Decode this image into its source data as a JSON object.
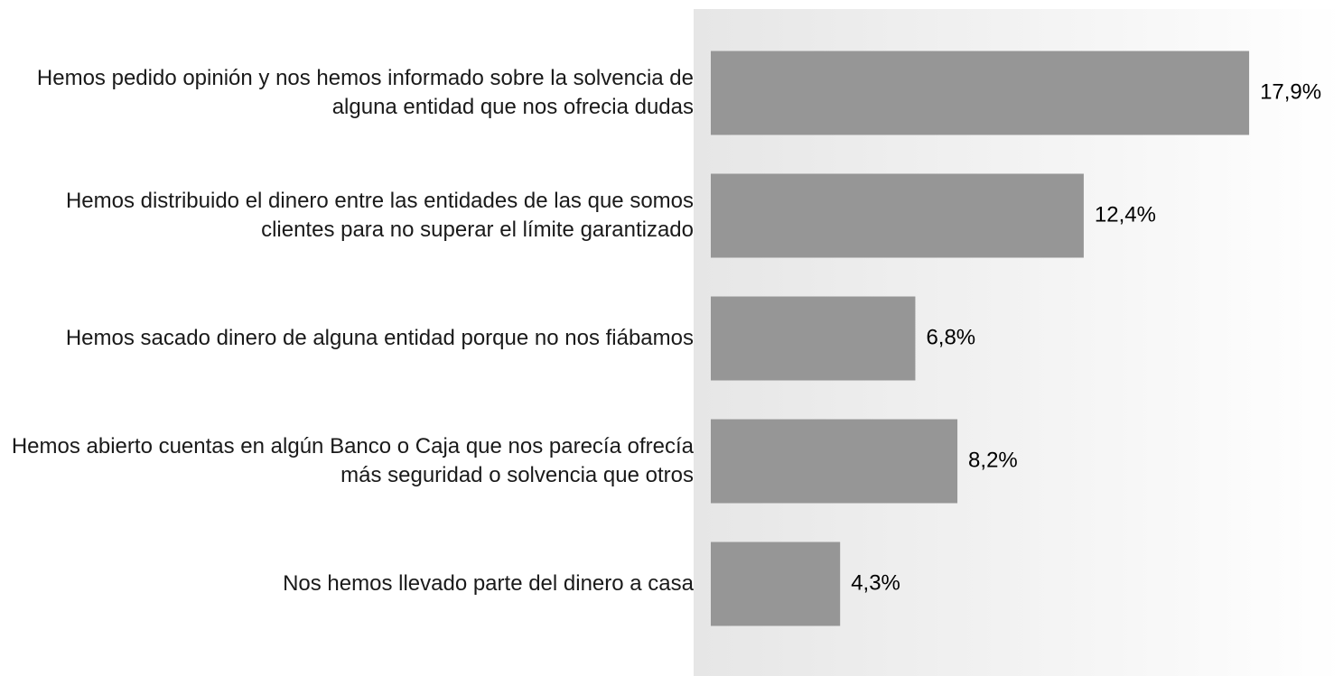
{
  "chart_data": {
    "type": "bar",
    "orientation": "horizontal",
    "categories": [
      "Hemos pedido opinión y nos hemos informado sobre la solvencia de alguna entidad que  nos ofrecia dudas",
      "Hemos distribuido el dinero entre las entidades de las que somos clientes para no superar el límite garantizado",
      "Hemos sacado dinero de alguna entidad porque no nos fiábamos",
      "Hemos abierto cuentas en algún Banco o Caja que nos parecía ofrecía más seguridad o solvencia que otros",
      "Nos hemos llevado parte del dinero a casa"
    ],
    "values": [
      17.9,
      12.4,
      6.8,
      8.2,
      4.3
    ],
    "value_labels": [
      "17,9%",
      "12,4%",
      "6,8%",
      "8,2%",
      "4,3%"
    ],
    "color": "#969696"
  }
}
